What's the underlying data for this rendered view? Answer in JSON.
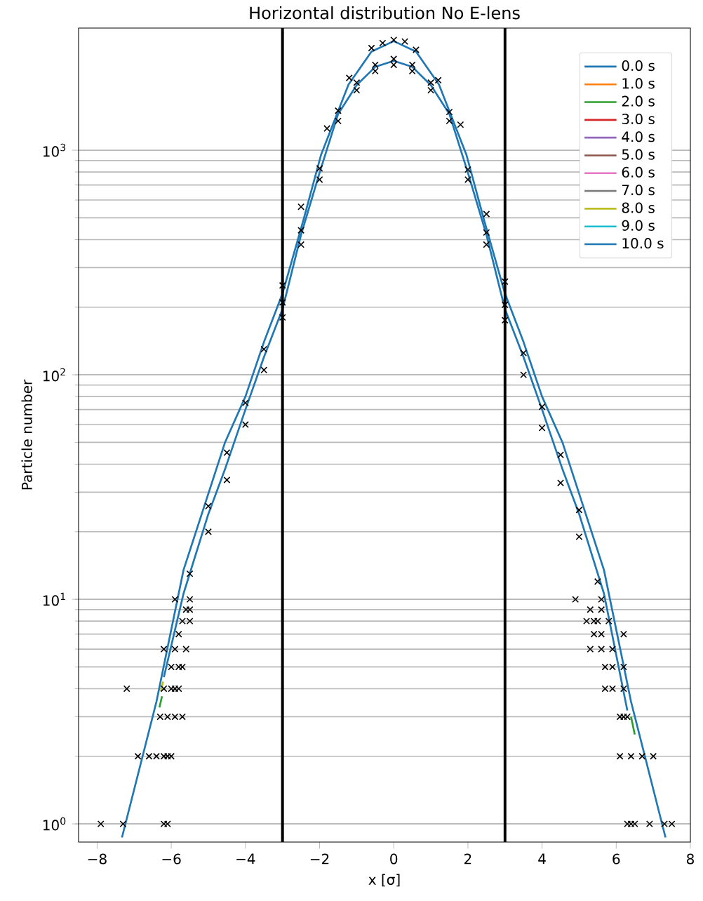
{
  "chart_data": {
    "type": "line",
    "title": "Horizontal distribution No E-lens",
    "xlabel": "x [σ]",
    "ylabel": "Particle number",
    "log": "y",
    "grid": "y",
    "legend": "top right",
    "marker": "none",
    "line_style": "solid",
    "xlim": [
      -8.5,
      8
    ],
    "ylim": [
      0.83,
      3500
    ],
    "xticks": [
      {
        "value": -8,
        "label": "−8"
      },
      {
        "value": -6,
        "label": "−6"
      },
      {
        "value": -4,
        "label": "−4"
      },
      {
        "value": -2,
        "label": "−2"
      },
      0,
      2,
      4,
      6,
      8
    ],
    "yticks": [
      {
        "value": 1,
        "label": "10$^{0}$"
      },
      {
        "value": 10,
        "label": "10$^{1}$"
      },
      {
        "value": 100,
        "label": "10$^{2}$"
      },
      {
        "value": 1000,
        "label": "10$^{3}$"
      }
    ],
    "ref_lines": [
      {
        "axis": "x",
        "value": -3,
        "color": "#000000"
      },
      {
        "axis": "x",
        "value": 3,
        "color": "#000000"
      }
    ],
    "series": [
      {
        "name": "0.0 s",
        "color": "#1f77b4",
        "x": [
          -7.33,
          -6.4,
          -5.67,
          -4.55,
          -4,
          -3.5,
          -3,
          -2.44,
          -1.96,
          -1.22,
          -0.6,
          0,
          0.6,
          1.22,
          1.96,
          2.44,
          3,
          3.5,
          4,
          4.55,
          5.67,
          6.4,
          7.33
        ],
        "values": [
          0.87,
          3.5,
          13.5,
          50,
          80,
          140,
          230,
          486,
          955,
          1960,
          2750,
          3060,
          2750,
          1960,
          955,
          486,
          230,
          140,
          80,
          50,
          13.5,
          3.5,
          0.87
        ]
      },
      {
        "name": "1.0 s",
        "color": "#ff7f0e"
      },
      {
        "name": "2.0 s",
        "color": "#2ca02c",
        "x": [
          -6.32,
          -6.25,
          null,
          6.4,
          6.5
        ],
        "values": [
          3.3,
          3.7,
          null,
          3.0,
          2.5
        ]
      },
      {
        "name": "3.0 s",
        "color": "#d62728"
      },
      {
        "name": "4.0 s",
        "color": "#9467bd"
      },
      {
        "name": "5.0 s",
        "color": "#8c564b"
      },
      {
        "name": "6.0 s",
        "color": "#e377c2"
      },
      {
        "name": "7.0 s",
        "color": "#7f7f7f"
      },
      {
        "name": "8.0 s",
        "color": "#bcbd22",
        "x": [
          -6.28,
          -6.22
        ],
        "values": [
          3.9,
          4.3
        ]
      },
      {
        "name": "9.0 s",
        "color": "#17becf"
      },
      {
        "name": "10.0 s",
        "color": "#1f77b4",
        "x": [
          -6.2,
          -5.67,
          -5,
          -4.55,
          -4,
          -3.5,
          -3,
          -2.5,
          -2,
          -1.5,
          -1,
          -0.5,
          0,
          0.5,
          1,
          1.5,
          2,
          2.5,
          3,
          3.5,
          4,
          4.55,
          5,
          5.67,
          6.3
        ],
        "values": [
          4.5,
          10.6,
          24,
          38,
          70,
          120,
          196,
          420,
          794,
          1450,
          1950,
          2350,
          2500,
          2350,
          1950,
          1450,
          794,
          420,
          196,
          120,
          70,
          38,
          24,
          10.6,
          3.2
        ]
      },
      {
        "type": "scatter",
        "marker": "cross",
        "color": "#000000",
        "x": [
          -0.6,
          -0.3,
          0,
          0.3,
          0.6,
          -1.2,
          1.2,
          -1.8,
          1.8,
          -2.5,
          2.5,
          -3,
          3,
          -5.5,
          -5.5,
          -5,
          -5,
          -4.5,
          -4.5,
          -4,
          -4,
          -3.5,
          -3.5,
          -3,
          -3,
          -2.5,
          -2.5,
          -2,
          -2,
          -1.5,
          -1.5,
          -1,
          -1,
          -0.5,
          -0.5,
          0,
          0,
          0.5,
          0.5,
          1,
          1,
          1.5,
          1.5,
          2,
          2,
          2.5,
          2.5,
          3,
          3,
          3.5,
          3.5,
          4,
          4,
          4.5,
          4.5,
          5,
          5,
          5.5,
          5.5,
          -5.9,
          -5.5,
          -5.6,
          -5.7,
          -5.5,
          -5.8,
          -6.2,
          -5.9,
          -5.6,
          -6.0,
          -5.8,
          -5.7,
          -7.2,
          -6.2,
          -6.0,
          -5.9,
          -5.8,
          -6.3,
          -6.1,
          -5.9,
          -5.7,
          -6.9,
          -6.6,
          -6.4,
          -6.2,
          -6.1,
          -6.0,
          -7.9,
          -7.3,
          -6.2,
          -6.1,
          4.9,
          5.6,
          5.3,
          5.6,
          5.2,
          5.4,
          5.8,
          5.4,
          5.6,
          6.2,
          5.3,
          5.6,
          5.9,
          5.7,
          5.9,
          6.2,
          5.7,
          5.9,
          6.2,
          6.1,
          6.2,
          6.3,
          6.1,
          6.4,
          6.7,
          7.0,
          6.3,
          6.4,
          6.5,
          6.9,
          7.3,
          7.5
        ],
        "values": [
          2850,
          3000,
          3100,
          3050,
          2800,
          2100,
          2050,
          1250,
          1300,
          560,
          520,
          250,
          260,
          13,
          9,
          26,
          20,
          45,
          34,
          75,
          60,
          130,
          105,
          210,
          180,
          440,
          380,
          830,
          740,
          1500,
          1350,
          2000,
          1850,
          2400,
          2250,
          2550,
          2400,
          2400,
          2250,
          2000,
          1850,
          1480,
          1350,
          820,
          740,
          430,
          380,
          205,
          175,
          125,
          100,
          72,
          58,
          44,
          33,
          25,
          19,
          12,
          8,
          10,
          10,
          9,
          8,
          8,
          7,
          6,
          6,
          6,
          5,
          5,
          5,
          4,
          4,
          4,
          4,
          4,
          3,
          3,
          3,
          3,
          2,
          2,
          2,
          2,
          2,
          2,
          1,
          1,
          1,
          1,
          10,
          10,
          9,
          9,
          8,
          8,
          8,
          7,
          7,
          7,
          6,
          6,
          6,
          5,
          5,
          5,
          4,
          4,
          4,
          3,
          3,
          3,
          2,
          2,
          2,
          2,
          1,
          1,
          1,
          1,
          1,
          1
        ]
      }
    ]
  }
}
